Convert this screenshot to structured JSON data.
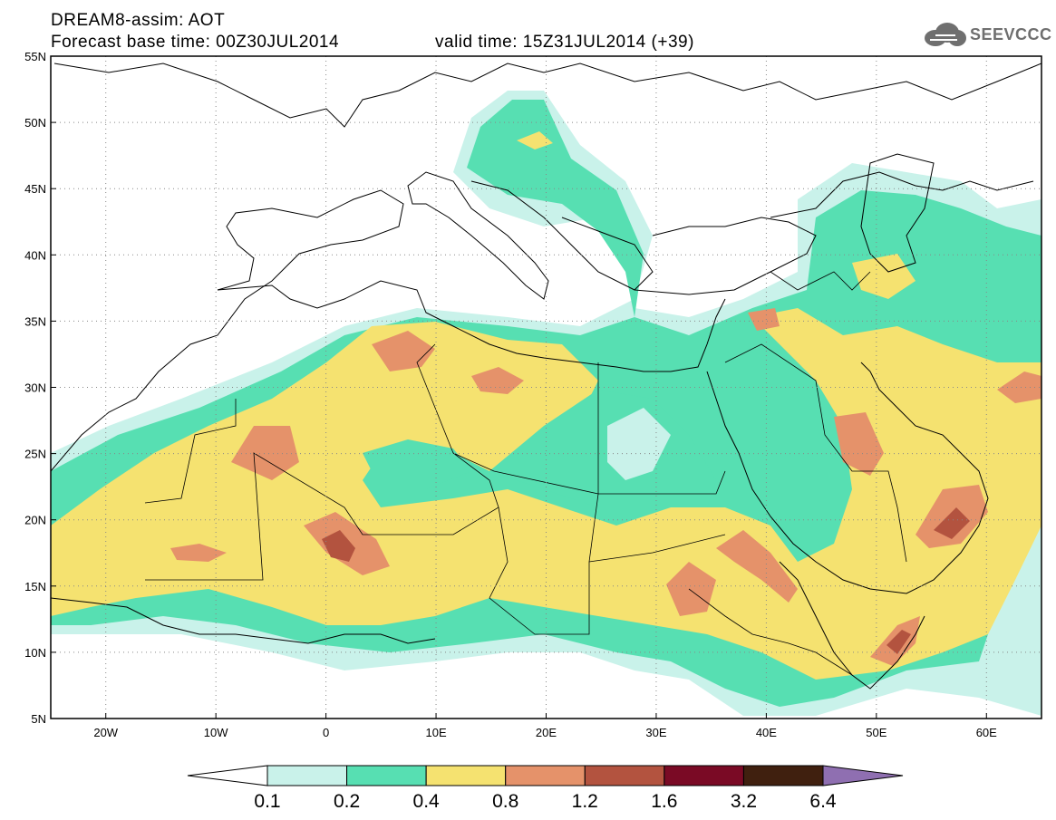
{
  "header": {
    "title_line1": "DREAM8-assim: AOT",
    "title_line2": "Forecast base time: 00Z30JUL2014",
    "valid_time": "valid time: 15Z31JUL2014 (+39)",
    "logo_text": "SEEVCCC"
  },
  "map": {
    "lat_labels": [
      "55N",
      "50N",
      "45N",
      "40N",
      "35N",
      "30N",
      "25N",
      "20N",
      "15N",
      "10N",
      "5N"
    ],
    "lon_labels": [
      "20W",
      "10W",
      "0",
      "10E",
      "20E",
      "30E",
      "40E",
      "50E",
      "60E"
    ],
    "gridlines": true
  },
  "colorbar": {
    "labels": [
      "0.1",
      "0.2",
      "0.4",
      "0.8",
      "1.2",
      "1.6",
      "3.2",
      "6.4"
    ],
    "colors": [
      "#ffffff",
      "#c9f2ea",
      "#57dfb2",
      "#f5e270",
      "#e5926a",
      "#b3533f",
      "#7a0a25",
      "#40200f",
      "#8f6fb1"
    ]
  }
}
